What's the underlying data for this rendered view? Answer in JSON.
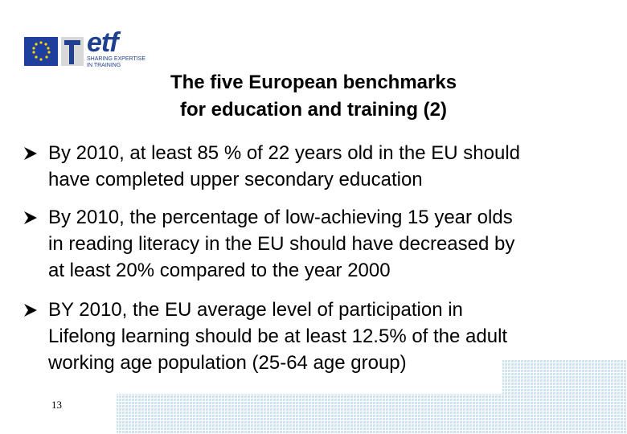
{
  "logo": {
    "name": "etf",
    "tagline": [
      "SHARING EXPERTISE",
      "IN TRAINING"
    ]
  },
  "title": [
    "The five European benchmarks",
    "for education and training (2)"
  ],
  "bullets": [
    [
      "By 2010, at least 85 % of 22 years old in the EU should",
      "have completed upper secondary education"
    ],
    [
      "By 2010, the percentage of low-achieving 15 year olds",
      "in reading literacy in the EU should have decreased by",
      "at least 20% compared to the year 2000"
    ],
    [
      "BY 2010, the EU average level of participation in",
      "Lifelong learning should be at least 12.5% of the adult",
      "working age population (25-64 age group)"
    ]
  ],
  "page_number": "13"
}
